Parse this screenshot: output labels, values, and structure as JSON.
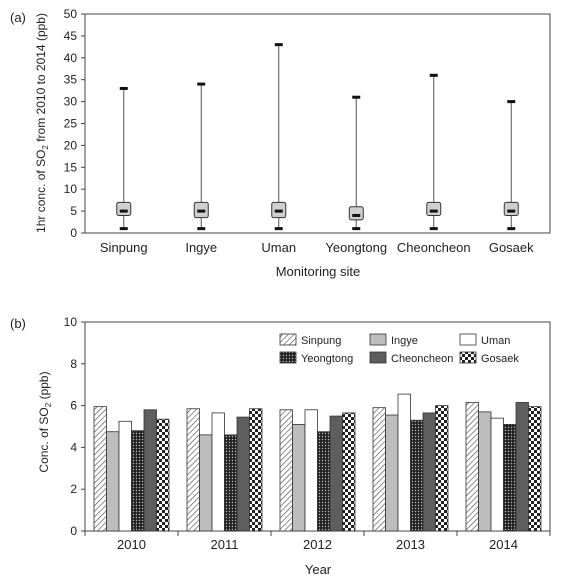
{
  "chart_data": [
    {
      "type": "box",
      "panel_label": "(a)",
      "xlabel": "Monitoring site",
      "ylabel_parts": [
        "1hr conc. of SO",
        "2",
        " from 2010 to 2014 (ppb)"
      ],
      "ylim": [
        0,
        50
      ],
      "yticks": [
        "0",
        "5",
        "10",
        "15",
        "20",
        "25",
        "30",
        "35",
        "40",
        "45",
        "50"
      ],
      "grid": false,
      "categories": [
        "Sinpung",
        "Ingye",
        "Uman",
        "Yeongtong",
        "Cheoncheon",
        "Gosaek"
      ],
      "boxes": [
        {
          "min": 1,
          "q1": 4,
          "median": 5,
          "q3": 7,
          "max": 33
        },
        {
          "min": 1,
          "q1": 3.5,
          "median": 5,
          "q3": 7,
          "max": 34
        },
        {
          "min": 1,
          "q1": 3.5,
          "median": 5,
          "q3": 7,
          "max": 43
        },
        {
          "min": 1,
          "q1": 3,
          "median": 4,
          "q3": 6,
          "max": 31
        },
        {
          "min": 1,
          "q1": 4,
          "median": 5,
          "q3": 7,
          "max": 36
        },
        {
          "min": 1,
          "q1": 4,
          "median": 5,
          "q3": 7,
          "max": 30
        }
      ]
    },
    {
      "type": "bar",
      "panel_label": "(b)",
      "xlabel": "Year",
      "ylabel_parts": [
        "Conc. of SO",
        "2",
        " (ppb)"
      ],
      "ylim": [
        0,
        10
      ],
      "yticks": [
        "0",
        "2",
        "4",
        "6",
        "8",
        "10"
      ],
      "grid": false,
      "legend_position": "top-right",
      "categories": [
        "2010",
        "2011",
        "2012",
        "2013",
        "2014"
      ],
      "series": [
        {
          "name": "Sinpung",
          "pattern": "diagonal-hatch",
          "values": [
            5.95,
            5.85,
            5.8,
            5.9,
            6.15
          ]
        },
        {
          "name": "Ingye",
          "pattern": "light-gray",
          "values": [
            4.75,
            4.6,
            5.1,
            5.55,
            5.7
          ]
        },
        {
          "name": "Uman",
          "pattern": "white",
          "values": [
            5.25,
            5.65,
            5.8,
            6.55,
            5.4
          ]
        },
        {
          "name": "Yeongtong",
          "pattern": "dark-dots",
          "values": [
            4.8,
            4.6,
            4.75,
            5.3,
            5.1
          ]
        },
        {
          "name": "Cheoncheon",
          "pattern": "dark-gray",
          "values": [
            5.8,
            5.45,
            5.5,
            5.65,
            6.15
          ]
        },
        {
          "name": "Gosaek",
          "pattern": "checker",
          "values": [
            5.35,
            5.85,
            5.65,
            6.0,
            5.95
          ]
        }
      ]
    }
  ]
}
